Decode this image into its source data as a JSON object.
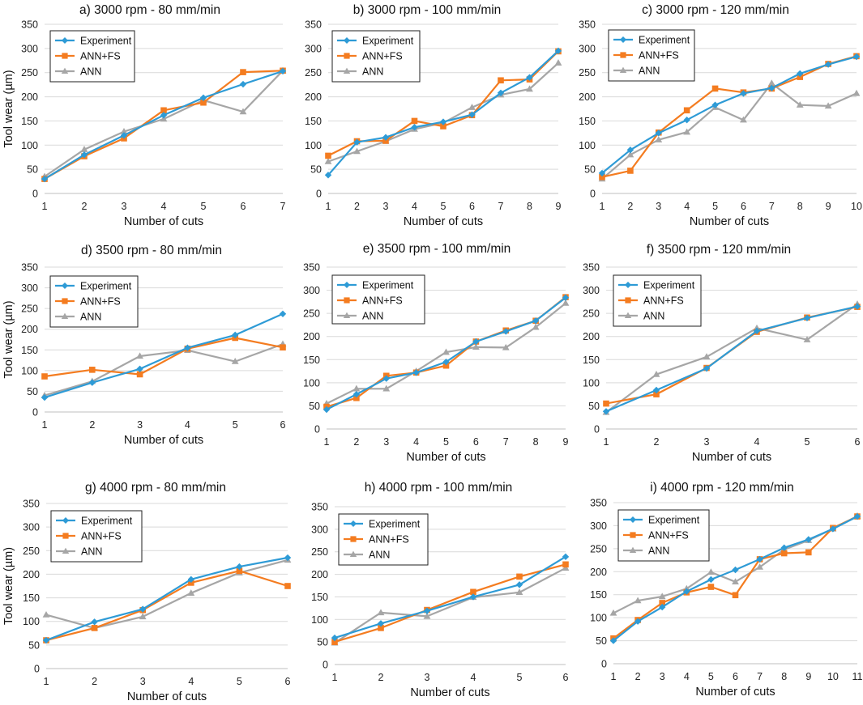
{
  "figure": {
    "ylabel": "Tool wear (µm)",
    "xlabel": "Number of cuts"
  },
  "colors": {
    "Experiment": "#2e9bd6",
    "ANN+FS": "#f47c20",
    "ANN": "#a6a6a6"
  },
  "chart_data": [
    {
      "id": "a",
      "type": "line",
      "title": "a) 3000 rpm - 80 mm/min",
      "xlabel": "Number of cuts",
      "ylabel": "Tool wear (µm)",
      "ylim": [
        0,
        350
      ],
      "yticks": [
        0,
        50,
        100,
        150,
        200,
        250,
        300,
        350
      ],
      "x": [
        1,
        2,
        3,
        4,
        5,
        6,
        7
      ],
      "series": [
        {
          "name": "Experiment",
          "values": [
            30,
            80,
            120,
            162,
            198,
            226,
            253
          ]
        },
        {
          "name": "ANN+FS",
          "values": [
            30,
            77,
            114,
            172,
            188,
            251,
            254
          ]
        },
        {
          "name": "ANN",
          "values": [
            35,
            91,
            128,
            154,
            193,
            169,
            254
          ]
        }
      ]
    },
    {
      "id": "b",
      "type": "line",
      "title": "b) 3000 rpm - 100 mm/min",
      "xlabel": "Number of cuts",
      "ylabel": "",
      "ylim": [
        0,
        350
      ],
      "yticks": [
        0,
        50,
        100,
        150,
        200,
        250,
        300,
        350
      ],
      "x": [
        1,
        2,
        3,
        4,
        5,
        6,
        7,
        8,
        9
      ],
      "series": [
        {
          "name": "Experiment",
          "values": [
            38,
            106,
            116,
            137,
            148,
            163,
            208,
            240,
            295
          ]
        },
        {
          "name": "ANN+FS",
          "values": [
            78,
            108,
            109,
            150,
            139,
            162,
            234,
            236,
            294
          ]
        },
        {
          "name": "ANN",
          "values": [
            66,
            87,
            108,
            133,
            146,
            178,
            204,
            216,
            270
          ]
        }
      ]
    },
    {
      "id": "c",
      "type": "line",
      "title": "c) 3000 rpm - 120 mm/min",
      "xlabel": "Number of cuts",
      "ylabel": "",
      "ylim": [
        0,
        350
      ],
      "yticks": [
        0,
        50,
        100,
        150,
        200,
        250,
        300,
        350
      ],
      "x": [
        1,
        2,
        3,
        4,
        5,
        6,
        7,
        8,
        9,
        10
      ],
      "series": [
        {
          "name": "Experiment",
          "values": [
            42,
            90,
            125,
            152,
            183,
            207,
            218,
            248,
            267,
            283
          ]
        },
        {
          "name": "ANN+FS",
          "values": [
            34,
            47,
            126,
            172,
            217,
            209,
            217,
            241,
            268,
            284
          ]
        },
        {
          "name": "ANN",
          "values": [
            30,
            80,
            111,
            127,
            178,
            152,
            228,
            183,
            181,
            207
          ]
        }
      ]
    },
    {
      "id": "d",
      "type": "line",
      "title": "d) 3500 rpm - 80 mm/min",
      "xlabel": "Number of cuts",
      "ylabel": "Tool wear (µm)",
      "ylim": [
        0,
        350
      ],
      "yticks": [
        0,
        50,
        100,
        150,
        200,
        250,
        300,
        350
      ],
      "x": [
        1,
        2,
        3,
        4,
        5,
        6
      ],
      "series": [
        {
          "name": "Experiment",
          "values": [
            35,
            71,
            104,
            155,
            186,
            237
          ]
        },
        {
          "name": "ANN+FS",
          "values": [
            86,
            102,
            91,
            153,
            179,
            156
          ]
        },
        {
          "name": "ANN",
          "values": [
            40,
            74,
            135,
            149,
            122,
            164
          ]
        }
      ]
    },
    {
      "id": "e",
      "type": "line",
      "title": "e) 3500 rpm - 100 mm/min",
      "xlabel": "Number of cuts",
      "ylabel": "",
      "ylim": [
        0,
        350
      ],
      "yticks": [
        0,
        50,
        100,
        150,
        200,
        250,
        300,
        350
      ],
      "x": [
        1,
        2,
        3,
        4,
        5,
        6,
        7,
        8,
        9
      ],
      "series": [
        {
          "name": "Experiment",
          "values": [
            42,
            75,
            109,
            122,
            145,
            189,
            211,
            234,
            284
          ]
        },
        {
          "name": "ANN+FS",
          "values": [
            48,
            67,
            115,
            122,
            137,
            189,
            213,
            234,
            285
          ]
        },
        {
          "name": "ANN",
          "values": [
            55,
            87,
            87,
            125,
            166,
            177,
            176,
            220,
            272
          ]
        }
      ]
    },
    {
      "id": "f",
      "type": "line",
      "title": "f) 3500 rpm - 120 mm/min",
      "xlabel": "Number of cuts",
      "ylabel": "",
      "ylim": [
        0,
        350
      ],
      "yticks": [
        0,
        50,
        100,
        150,
        200,
        250,
        300,
        350
      ],
      "x": [
        1,
        2,
        3,
        4,
        5,
        6
      ],
      "series": [
        {
          "name": "Experiment",
          "values": [
            38,
            84,
            131,
            212,
            240,
            265
          ]
        },
        {
          "name": "ANN+FS",
          "values": [
            55,
            75,
            132,
            210,
            241,
            264
          ]
        },
        {
          "name": "ANN",
          "values": [
            36,
            118,
            156,
            218,
            193,
            270
          ]
        }
      ]
    },
    {
      "id": "g",
      "type": "line",
      "title": "g) 4000 rpm - 80 mm/min",
      "xlabel": "Number of cuts",
      "ylabel": "Tool wear (µm)",
      "ylim": [
        0,
        350
      ],
      "yticks": [
        0,
        50,
        100,
        150,
        200,
        250,
        300,
        350
      ],
      "x": [
        1,
        2,
        3,
        4,
        5,
        6
      ],
      "series": [
        {
          "name": "Experiment",
          "values": [
            60,
            99,
            126,
            189,
            216,
            235
          ]
        },
        {
          "name": "ANN+FS",
          "values": [
            60,
            86,
            124,
            182,
            207,
            175
          ]
        },
        {
          "name": "ANN",
          "values": [
            114,
            86,
            110,
            160,
            203,
            230
          ]
        }
      ]
    },
    {
      "id": "h",
      "type": "line",
      "title": "h) 4000 rpm - 100 mm/min",
      "xlabel": "Number of cuts",
      "ylabel": "",
      "ylim": [
        0,
        350
      ],
      "yticks": [
        0,
        50,
        100,
        150,
        200,
        250,
        300,
        350
      ],
      "x": [
        1,
        2,
        3,
        4,
        5,
        6
      ],
      "series": [
        {
          "name": "Experiment",
          "values": [
            59,
            91,
            119,
            150,
            177,
            239
          ]
        },
        {
          "name": "ANN+FS",
          "values": [
            50,
            81,
            121,
            161,
            195,
            222
          ]
        },
        {
          "name": "ANN",
          "values": [
            48,
            115,
            107,
            149,
            160,
            214
          ]
        }
      ]
    },
    {
      "id": "i",
      "type": "line",
      "title": "i) 4000 rpm - 120 mm/min",
      "xlabel": "Number of cuts",
      "ylabel": "",
      "ylim": [
        0,
        350
      ],
      "yticks": [
        0,
        50,
        100,
        150,
        200,
        250,
        300,
        350
      ],
      "x": [
        1,
        2,
        3,
        4,
        5,
        6,
        7,
        8,
        9,
        10,
        11
      ],
      "series": [
        {
          "name": "Experiment",
          "values": [
            50,
            92,
            123,
            157,
            183,
            204,
            227,
            252,
            270,
            293,
            320
          ]
        },
        {
          "name": "ANN+FS",
          "values": [
            55,
            95,
            132,
            155,
            167,
            149,
            227,
            240,
            242,
            295,
            320
          ]
        },
        {
          "name": "ANN",
          "values": [
            110,
            137,
            146,
            163,
            199,
            178,
            210,
            248,
            268,
            293,
            321
          ]
        }
      ]
    }
  ]
}
